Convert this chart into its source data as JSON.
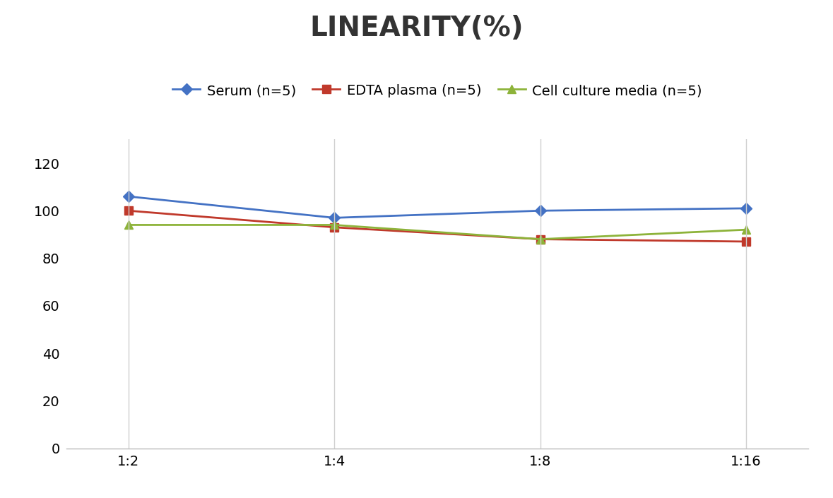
{
  "title": "LINEARITY(%)",
  "x_labels": [
    "1:2",
    "1:4",
    "1:8",
    "1:16"
  ],
  "x_positions": [
    0,
    1,
    2,
    3
  ],
  "series": [
    {
      "label": "Serum (n=5)",
      "values": [
        106,
        97,
        100,
        101
      ],
      "color": "#4472C4",
      "marker": "D",
      "markersize": 8
    },
    {
      "label": "EDTA plasma (n=5)",
      "values": [
        100,
        93,
        88,
        87
      ],
      "color": "#C0392B",
      "marker": "s",
      "markersize": 8
    },
    {
      "label": "Cell culture media (n=5)",
      "values": [
        94,
        94,
        88,
        92
      ],
      "color": "#8DB33A",
      "marker": "^",
      "markersize": 8
    }
  ],
  "ylim": [
    0,
    130
  ],
  "yticks": [
    0,
    20,
    40,
    60,
    80,
    100,
    120
  ],
  "background_color": "#ffffff",
  "title_fontsize": 28,
  "legend_fontsize": 14,
  "tick_fontsize": 14,
  "grid_color": "#d0d0d0"
}
